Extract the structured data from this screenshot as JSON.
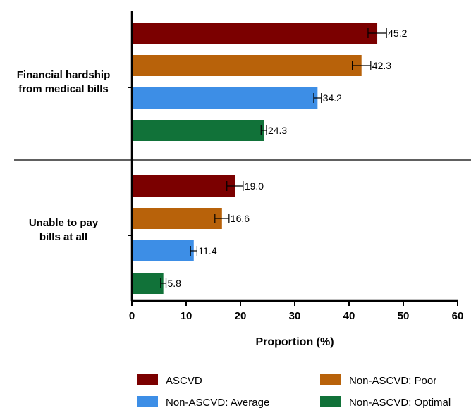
{
  "chart_data": {
    "type": "bar",
    "orientation": "horizontal",
    "title": "",
    "xlabel": "Proportion (%)",
    "ylabel": "",
    "xlim": [
      0,
      60
    ],
    "x_ticks": [
      "0",
      "10",
      "20",
      "30",
      "40",
      "50",
      "60"
    ],
    "grid": false,
    "legend_position": "bottom",
    "groups": [
      {
        "label_lines": [
          "Financial hardship",
          "from medical bills"
        ]
      },
      {
        "label_lines": [
          "Unable to pay",
          "bills at all"
        ]
      }
    ],
    "series": [
      {
        "name": "ASCVD",
        "color": "#7b0000",
        "values": [
          45.2,
          19.0
        ],
        "labels": [
          "45.2",
          "19.0"
        ],
        "err_low": [
          43.5,
          17.5
        ],
        "err_high": [
          46.9,
          20.5
        ]
      },
      {
        "name": "Non-ASCVD: Poor",
        "color": "#b8620a",
        "values": [
          42.3,
          16.6
        ],
        "labels": [
          "42.3",
          "16.6"
        ],
        "err_low": [
          40.6,
          15.3
        ],
        "err_high": [
          44.0,
          17.9
        ]
      },
      {
        "name": "Non-ASCVD: Average",
        "color": "#3d8ee6",
        "values": [
          34.2,
          11.4
        ],
        "labels": [
          "34.2",
          "11.4"
        ],
        "err_low": [
          33.5,
          10.8
        ],
        "err_high": [
          34.9,
          12.0
        ]
      },
      {
        "name": "Non-ASCVD: Optimal",
        "color": "#117239",
        "values": [
          24.3,
          5.8
        ],
        "labels": [
          "24.3",
          "5.8"
        ],
        "err_low": [
          23.8,
          5.3
        ],
        "err_high": [
          24.8,
          6.3
        ]
      }
    ]
  }
}
